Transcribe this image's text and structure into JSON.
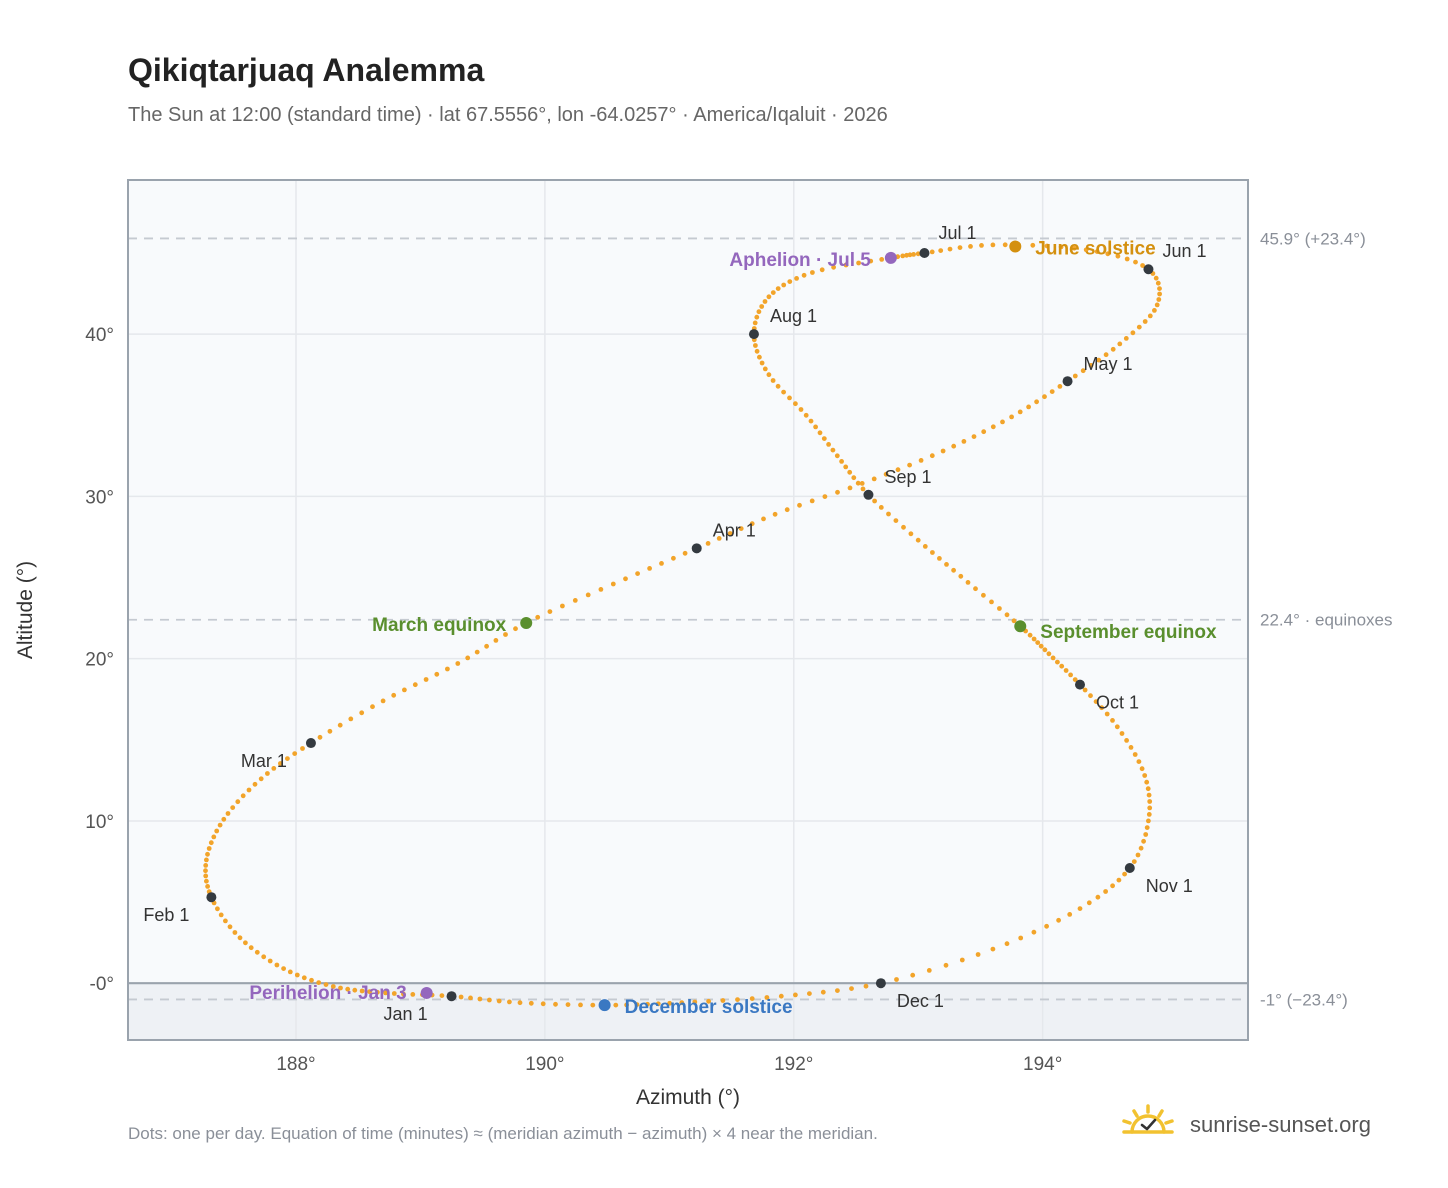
{
  "title": "Qikiqtarjuaq Analemma",
  "subtitle": "The Sun at 12:00 (standard time) · lat 67.5556°, lon -64.0257° · America/Iqaluit · 2026",
  "footnote": "Dots: one per day. Equation of time (minutes) ≈ (meridian azimuth − azimuth) × 4 near the meridian.",
  "brand": {
    "name": "sunrise-sunset.org",
    "icon": "sun-check-icon"
  },
  "colors": {
    "path": "#f2a42a",
    "month_marker": "#343a40",
    "equinox": "#5a8f2e",
    "solstice_june": "#d4900f",
    "solstice_december": "#3a78c2",
    "aphelion_perihelion": "#9467bd",
    "plot_background": "#f8fafc",
    "below_horizon": "#eef1f5",
    "grid": "#e5e8ec",
    "reference_line": "#c5cad1",
    "axis_frame": "#9aa3ad"
  },
  "chart_data": {
    "type": "scatter",
    "title": "Qikiqtarjuaq Analemma",
    "xlabel": "Azimuth (°)",
    "ylabel": "Altitude (°)",
    "xlim": [
      186.65,
      195.65
    ],
    "ylim": [
      -3.5,
      49.5
    ],
    "xticks": [
      188,
      190,
      192,
      194
    ],
    "xtick_labels": [
      "188°",
      "190°",
      "192°",
      "194°"
    ],
    "yticks": [
      0,
      10,
      20,
      30,
      40
    ],
    "ytick_labels": [
      "-0°",
      "10°",
      "20°",
      "30°",
      "40°"
    ],
    "grid": true,
    "horizon_altitude": 0,
    "reference_lines": [
      {
        "y": 45.9,
        "label": "45.9° (+23.4°)"
      },
      {
        "y": 22.4,
        "label": "22.4° · equinoxes"
      },
      {
        "y": -1.0,
        "label": "-1° (−23.4°)"
      }
    ],
    "path_anchors": [
      [
        189.25,
        -0.8
      ],
      [
        188.72,
        -0.6
      ],
      [
        188.3,
        -0.2
      ],
      [
        187.9,
        0.9
      ],
      [
        187.55,
        2.8
      ],
      [
        187.32,
        5.3
      ],
      [
        187.28,
        7.6
      ],
      [
        187.42,
        10.1
      ],
      [
        187.72,
        12.6
      ],
      [
        188.12,
        14.8
      ],
      [
        188.7,
        17.4
      ],
      [
        189.3,
        19.7
      ],
      [
        189.85,
        22.2
      ],
      [
        190.55,
        24.6
      ],
      [
        191.22,
        26.8
      ],
      [
        191.85,
        28.9
      ],
      [
        192.55,
        30.8
      ],
      [
        193.2,
        32.8
      ],
      [
        193.75,
        34.9
      ],
      [
        194.2,
        37.1
      ],
      [
        194.62,
        39.4
      ],
      [
        194.92,
        41.8
      ],
      [
        194.85,
        44.0
      ],
      [
        194.35,
        45.2
      ],
      [
        193.6,
        45.5
      ],
      [
        193.05,
        45.0
      ],
      [
        192.78,
        44.7
      ],
      [
        192.15,
        43.8
      ],
      [
        191.8,
        42.3
      ],
      [
        191.68,
        40.0
      ],
      [
        191.8,
        37.5
      ],
      [
        192.1,
        35.0
      ],
      [
        192.35,
        32.5
      ],
      [
        192.6,
        30.1
      ],
      [
        193.0,
        27.3
      ],
      [
        193.4,
        24.7
      ],
      [
        193.82,
        22.0
      ],
      [
        194.05,
        20.3
      ],
      [
        194.3,
        18.4
      ],
      [
        194.6,
        15.8
      ],
      [
        194.82,
        12.8
      ],
      [
        194.85,
        10.0
      ],
      [
        194.7,
        7.1
      ],
      [
        194.3,
        4.6
      ],
      [
        193.6,
        2.1
      ],
      [
        192.7,
        0.0
      ],
      [
        191.9,
        -0.8
      ],
      [
        191.1,
        -1.2
      ],
      [
        190.48,
        -1.35
      ],
      [
        189.8,
        -1.2
      ],
      [
        189.25,
        -0.8
      ]
    ],
    "month_markers": [
      {
        "label": "Jan 1",
        "x": 189.25,
        "y": -0.8
      },
      {
        "label": "Feb 1",
        "x": 187.32,
        "y": 5.3
      },
      {
        "label": "Mar 1",
        "x": 188.12,
        "y": 14.8
      },
      {
        "label": "Apr 1",
        "x": 191.22,
        "y": 26.8
      },
      {
        "label": "May 1",
        "x": 194.2,
        "y": 37.1
      },
      {
        "label": "Jun 1",
        "x": 194.85,
        "y": 44.0
      },
      {
        "label": "Jul 1",
        "x": 193.05,
        "y": 45.0
      },
      {
        "label": "Aug 1",
        "x": 191.68,
        "y": 40.0
      },
      {
        "label": "Sep 1",
        "x": 192.6,
        "y": 30.1
      },
      {
        "label": "Oct 1",
        "x": 194.3,
        "y": 18.4
      },
      {
        "label": "Nov 1",
        "x": 194.7,
        "y": 7.1
      },
      {
        "label": "Dec 1",
        "x": 192.7,
        "y": 0.0
      }
    ],
    "events": [
      {
        "label": "March equinox",
        "x": 189.85,
        "y": 22.2,
        "kind": "equinox"
      },
      {
        "label": "September equinox",
        "x": 193.82,
        "y": 22.0,
        "kind": "equinox"
      },
      {
        "label": "June solstice",
        "x": 193.78,
        "y": 45.4,
        "kind": "solstice_june"
      },
      {
        "label": "December solstice",
        "x": 190.48,
        "y": -1.35,
        "kind": "solstice_december"
      },
      {
        "label": "Aphelion · Jul 5",
        "x": 192.78,
        "y": 44.7,
        "kind": "aphelion_perihelion"
      },
      {
        "label": "Perihelion · Jan 3",
        "x": 189.05,
        "y": -0.6,
        "kind": "aphelion_perihelion"
      }
    ]
  }
}
